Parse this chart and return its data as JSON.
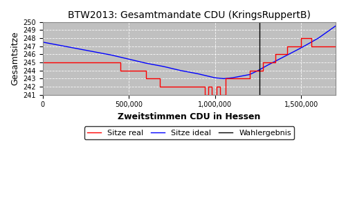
{
  "title": "BTW2013: Gesamtmandate CDU (KringsRuppertB)",
  "xlabel": "Zweitstimmen CDU in Hessen",
  "ylabel": "Gesamtsitze",
  "ylim": [
    241,
    250
  ],
  "xlim": [
    0,
    1700000
  ],
  "wahlergebnis": 1259380,
  "plot_bg_color": "#c0c0c0",
  "fig_bg_color": "#ffffff",
  "legend_labels": [
    "Sitze real",
    "Sitze ideal",
    "Wahlergebnis"
  ],
  "ideal_x": [
    0,
    50000,
    100000,
    150000,
    200000,
    250000,
    300000,
    350000,
    400000,
    450000,
    500000,
    550000,
    600000,
    650000,
    700000,
    750000,
    800000,
    850000,
    900000,
    950000,
    1000000,
    1050000,
    1100000,
    1150000,
    1200000,
    1250000,
    1300000,
    1350000,
    1400000,
    1450000,
    1500000,
    1550000,
    1600000,
    1650000,
    1700000
  ],
  "ideal_y": [
    247.5,
    247.3,
    247.1,
    246.9,
    246.7,
    246.5,
    246.3,
    246.1,
    245.9,
    245.65,
    245.4,
    245.15,
    244.9,
    244.7,
    244.5,
    244.25,
    244.0,
    243.8,
    243.6,
    243.35,
    243.1,
    243.0,
    243.1,
    243.3,
    243.5,
    244.0,
    244.6,
    245.15,
    245.7,
    246.25,
    246.8,
    247.4,
    248.0,
    248.75,
    249.5
  ],
  "real_x": [
    0,
    450000,
    450000,
    600000,
    600000,
    680000,
    680000,
    780000,
    780000,
    870000,
    870000,
    940000,
    940000,
    960000,
    960000,
    980000,
    980000,
    1010000,
    1010000,
    1030000,
    1030000,
    1060000,
    1060000,
    1080000,
    1080000,
    1200000,
    1200000,
    1240000,
    1240000,
    1280000,
    1280000,
    1350000,
    1350000,
    1420000,
    1420000,
    1500000,
    1500000,
    1560000,
    1560000,
    1700000
  ],
  "real_y": [
    245,
    245,
    244,
    244,
    243,
    243,
    242,
    242,
    242,
    242,
    242,
    242,
    241,
    241,
    242,
    242,
    241,
    241,
    242,
    242,
    241,
    241,
    243,
    243,
    243,
    243,
    244,
    244,
    244,
    244,
    245,
    245,
    246,
    246,
    247,
    247,
    248,
    248,
    247,
    247
  ]
}
